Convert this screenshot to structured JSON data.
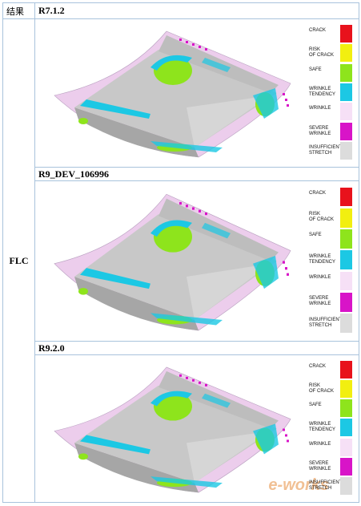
{
  "header": [
    "结果",
    "R7.1.2"
  ],
  "row_label": "FLC",
  "sub_headers": [
    "R9_DEV_106996",
    "R9.2.0"
  ],
  "legend": [
    {
      "label": "CRACK",
      "color": "#e8121c"
    },
    {
      "label": "RISK\nOF CRACK",
      "color": "#f2ef10"
    },
    {
      "label": "SAFE",
      "color": "#8ee41c"
    },
    {
      "label": "WRINKLE\nTENDENCY",
      "color": "#1cc8e4"
    },
    {
      "label": "WRINKLE",
      "color": "#f6e0f6"
    },
    {
      "label": "SEVERE\nWRINKLE",
      "color": "#d814c8"
    },
    {
      "label": "INSUFFICIENT\nSTRETCH",
      "color": "#dcdcdc"
    }
  ],
  "watermark": "e-works"
}
